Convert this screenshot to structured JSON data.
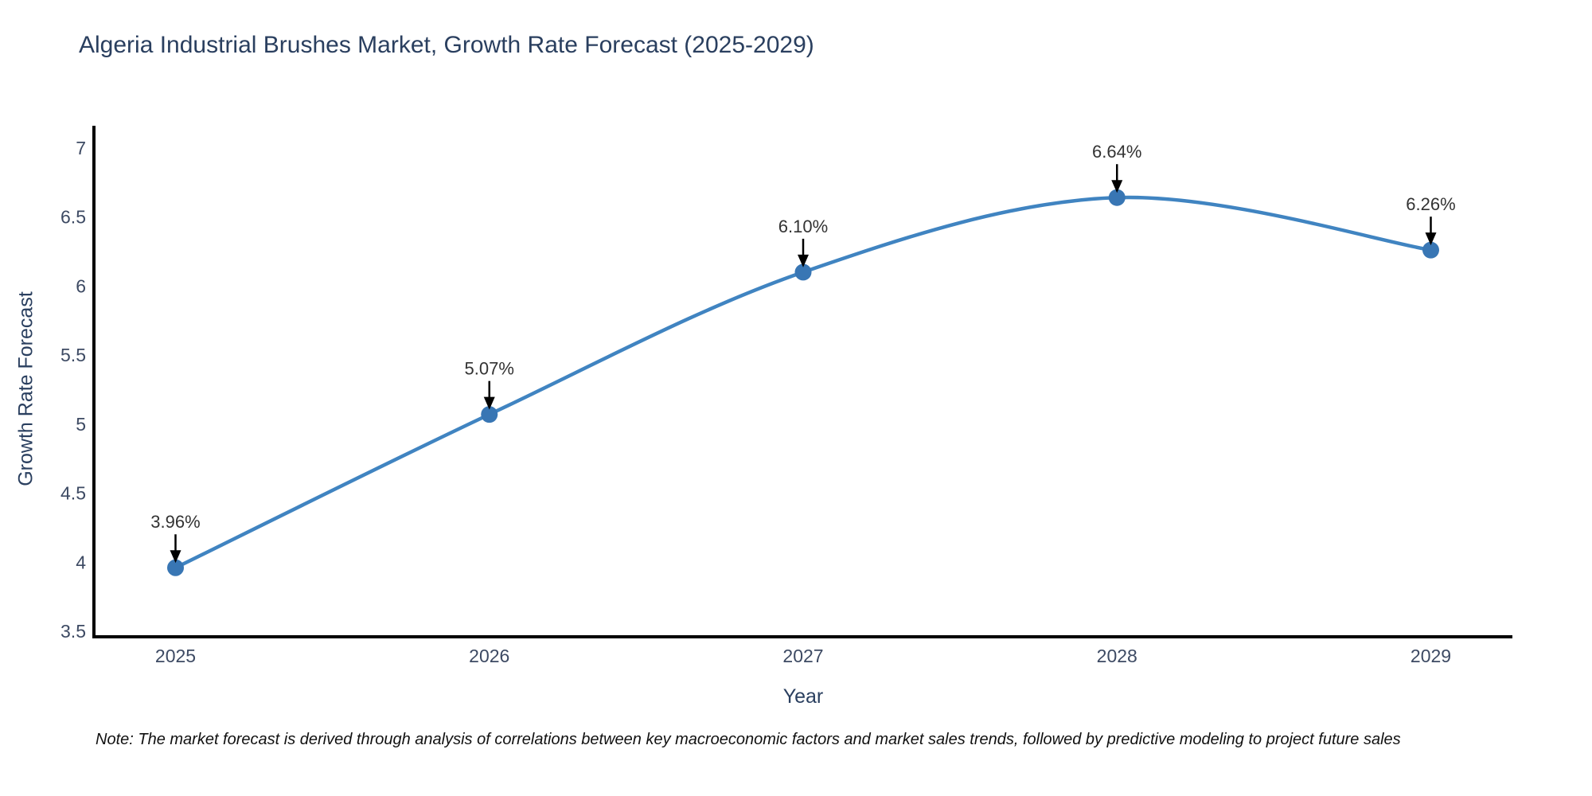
{
  "title": "Algeria Industrial Brushes Market, Growth Rate Forecast (2025-2029)",
  "note": "Note: The market forecast is derived through analysis of correlations between key macroeconomic factors and market sales trends, followed by predictive modeling to project future sales",
  "colors": {
    "title_text": "#2a3f5f",
    "line": "#4084c1",
    "marker": "#3876b4",
    "axis_line": "#000000",
    "tick_label": "#3d4a63",
    "annotation_text": "#333333",
    "arrow": "#000000",
    "background": "#ffffff"
  },
  "chart_data": {
    "type": "line",
    "title": "Algeria Industrial Brushes Market, Growth Rate Forecast (2025-2029)",
    "xlabel": "Year",
    "ylabel": "Growth Rate Forecast",
    "x": [
      2025,
      2026,
      2027,
      2028,
      2029
    ],
    "values": [
      3.96,
      5.07,
      6.1,
      6.64,
      6.26
    ],
    "point_labels": [
      "3.96%",
      "5.07%",
      "6.10%",
      "6.64%",
      "6.26%"
    ],
    "line_shape": "spline",
    "markers": true,
    "annotations_have_arrows": true,
    "xticks": [
      "2025",
      "2026",
      "2027",
      "2028",
      "2029"
    ],
    "yticks": [
      "3.5",
      "4",
      "4.5",
      "5",
      "5.5",
      "6",
      "6.5",
      "7"
    ],
    "ytick_values": [
      3.5,
      4,
      4.5,
      5,
      5.5,
      6,
      6.5,
      7
    ],
    "xlim": [
      2024.74,
      2029.26
    ],
    "ylim": [
      3.46,
      7.16
    ],
    "grid": false,
    "legend": false
  }
}
